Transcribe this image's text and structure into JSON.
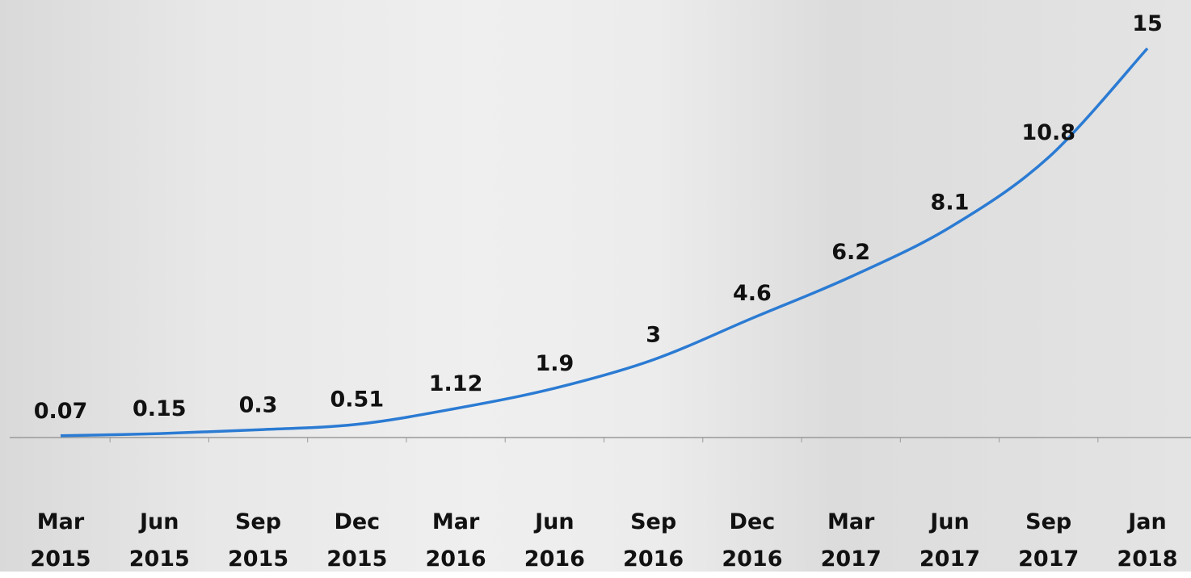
{
  "chart_data": {
    "type": "line",
    "categories": [
      "Mar 2015",
      "Jun 2015",
      "Sep 2015",
      "Dec 2015",
      "Mar 2016",
      "Jun 2016",
      "Sep 2016",
      "Dec 2016",
      "Mar 2017",
      "Jun 2017",
      "Sep 2017",
      "Jan 2018"
    ],
    "values": [
      0.07,
      0.15,
      0.3,
      0.51,
      1.12,
      1.9,
      3,
      4.6,
      6.2,
      8.1,
      10.8,
      15
    ],
    "color": "#2b7bd3"
  }
}
